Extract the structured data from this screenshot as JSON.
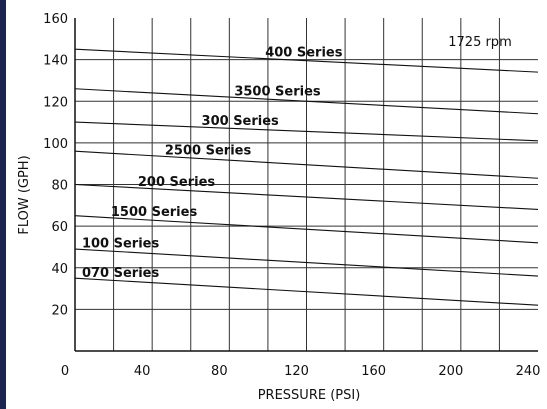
{
  "chart_data": {
    "type": "line",
    "title": "",
    "xlabel": "PRESSURE (PSI)",
    "ylabel": "FLOW (GPH)",
    "annotation": "1725 rpm",
    "xlim": [
      0,
      240
    ],
    "ylim": [
      0,
      160
    ],
    "x_ticks": [
      0,
      40,
      80,
      120,
      160,
      200,
      240
    ],
    "y_ticks": [
      20,
      40,
      60,
      80,
      100,
      120,
      140,
      160
    ],
    "x_grid": [
      20,
      40,
      60,
      80,
      100,
      120,
      140,
      160,
      180,
      200,
      220
    ],
    "y_grid": [
      20,
      40,
      60,
      80,
      100,
      120,
      140
    ],
    "grid": true,
    "series": [
      {
        "name": "400 Series",
        "x": [
          0,
          240
        ],
        "y": [
          145,
          134
        ]
      },
      {
        "name": "3500 Series",
        "x": [
          0,
          240
        ],
        "y": [
          126,
          114
        ]
      },
      {
        "name": "300 Series",
        "x": [
          0,
          240
        ],
        "y": [
          110,
          101
        ]
      },
      {
        "name": "2500 Series",
        "x": [
          0,
          240
        ],
        "y": [
          96,
          83
        ]
      },
      {
        "name": "200 Series",
        "x": [
          0,
          240
        ],
        "y": [
          80,
          68
        ]
      },
      {
        "name": "1500 Series",
        "x": [
          0,
          240
        ],
        "y": [
          65,
          52
        ]
      },
      {
        "name": "100 Series",
        "x": [
          0,
          240
        ],
        "y": [
          49,
          36
        ]
      },
      {
        "name": "070 Series",
        "x": [
          0,
          240
        ],
        "y": [
          35,
          22
        ]
      }
    ]
  }
}
